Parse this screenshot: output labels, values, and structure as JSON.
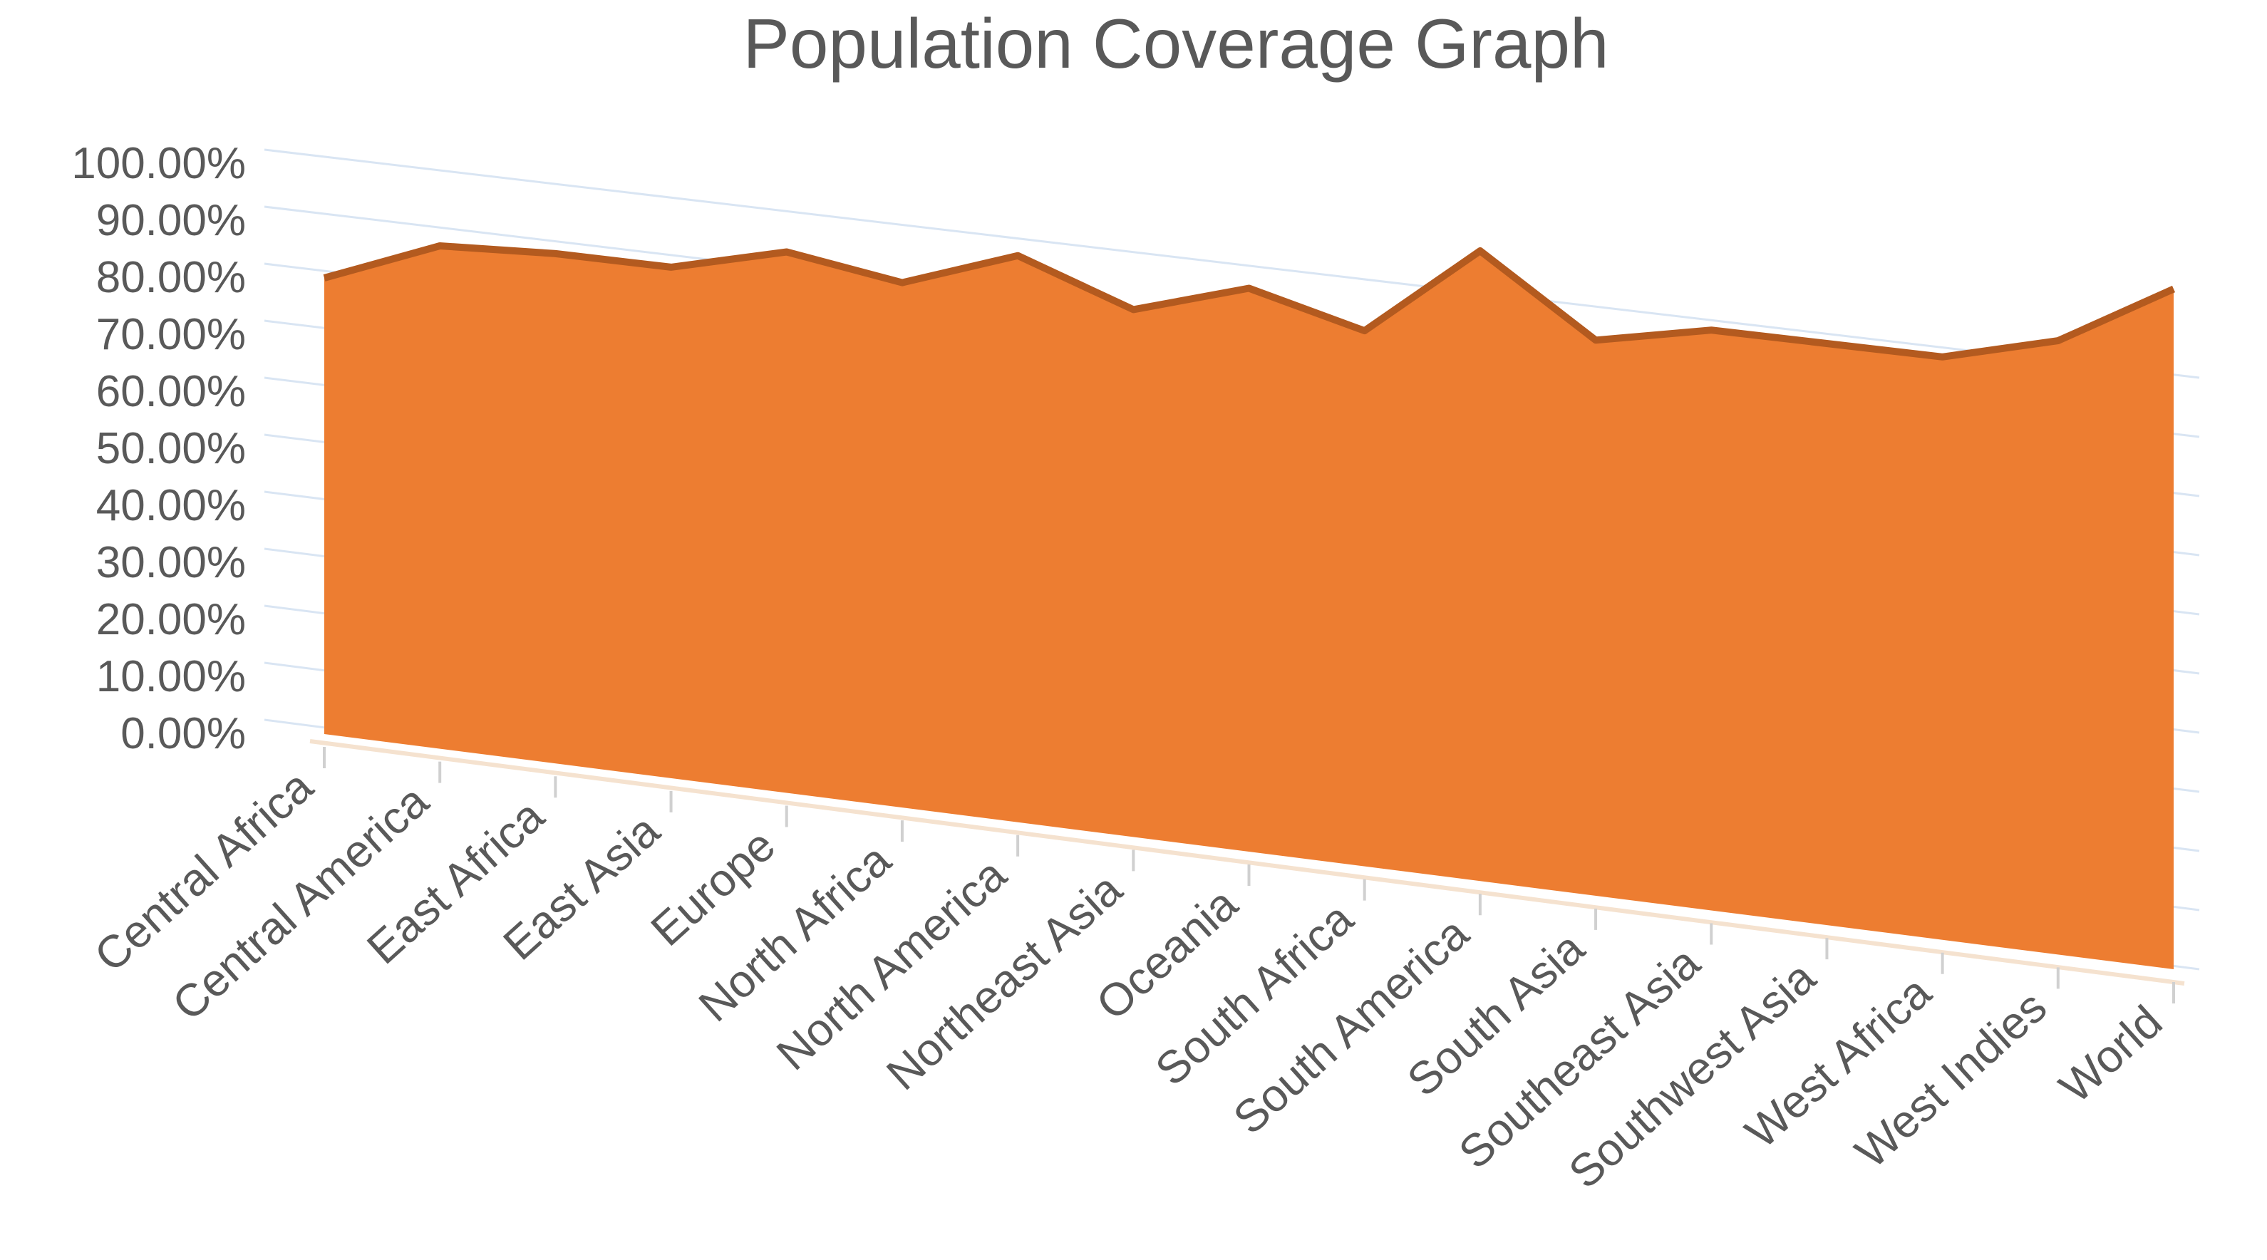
{
  "chart_data": {
    "type": "area",
    "title": "Population Coverage Graph",
    "xlabel": "",
    "ylabel": "",
    "ylim": [
      0,
      1
    ],
    "y_ticks": [
      "0.00%",
      "10.00%",
      "20.00%",
      "30.00%",
      "40.00%",
      "50.00%",
      "60.00%",
      "70.00%",
      "80.00%",
      "90.00%",
      "100.00%"
    ],
    "y_tick_values": [
      0,
      0.1,
      0.2,
      0.3,
      0.4,
      0.5,
      0.6,
      0.7,
      0.8,
      0.9,
      1.0
    ],
    "categories": [
      "Central Africa",
      "Central America",
      "East Africa",
      "East Asia",
      "Europe",
      "North Africa",
      "North America",
      "Northeast Asia",
      "Oceania",
      "South Africa",
      "South America",
      "South Asia",
      "Southeast Asia",
      "Southwest Asia",
      "West Africa",
      "West Indies",
      "World"
    ],
    "values": [
      0.8,
      0.88,
      0.89,
      0.89,
      0.94,
      0.91,
      0.98,
      0.91,
      0.97,
      0.92,
      1.08,
      0.95,
      0.99,
      0.99,
      0.99,
      1.04,
      1.15
    ],
    "grid": true,
    "legend": "none",
    "colors": {
      "fill": "#ED7D31",
      "edge": "#B35A1F",
      "grid": "#D9E5F3",
      "text": "#595959"
    }
  }
}
